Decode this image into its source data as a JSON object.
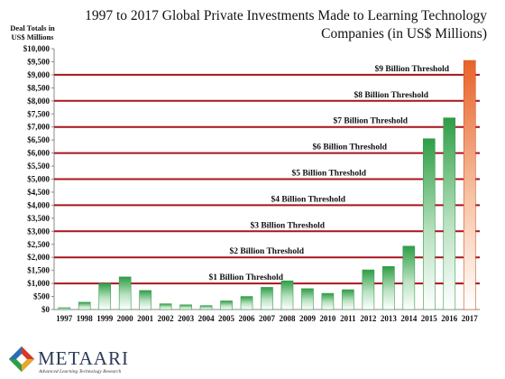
{
  "chart_data": {
    "type": "bar",
    "title_lines": [
      "1997 to 2017 Global Private Investments Made to Learning Technology",
      "Companies (in US$ Millions)"
    ],
    "ylabel_lines": [
      "Deal Totals in",
      "US$ Millions"
    ],
    "xlabel": "",
    "ylim": [
      0,
      10000
    ],
    "yticks": [
      "$0",
      "$500",
      "$1,000",
      "$1,500",
      "$2,000",
      "$2,500",
      "$3,000",
      "$3,500",
      "$4,000",
      "$4,500",
      "$5,000",
      "$5,500",
      "$6,000",
      "$6,500",
      "$7,000",
      "$7,500",
      "$8,000",
      "$8,500",
      "$9,000",
      "$9,500",
      "$10,000"
    ],
    "categories": [
      "1997",
      "1998",
      "1999",
      "2000",
      "2001",
      "2002",
      "2003",
      "2004",
      "2005",
      "2006",
      "2007",
      "2008",
      "2009",
      "2010",
      "2011",
      "2012",
      "2013",
      "2014",
      "2015",
      "2016",
      "2017"
    ],
    "values": [
      70,
      280,
      1000,
      1250,
      730,
      220,
      180,
      150,
      330,
      500,
      850,
      1100,
      800,
      620,
      760,
      1520,
      1650,
      2430,
      6550,
      7350,
      9550
    ],
    "thresholds": [
      {
        "value": 1000,
        "label": "$1 Billion Threshold"
      },
      {
        "value": 2000,
        "label": "$2 Billion Threshold"
      },
      {
        "value": 3000,
        "label": "$3 Billion Threshold"
      },
      {
        "value": 4000,
        "label": "$4 Billion Threshold"
      },
      {
        "value": 5000,
        "label": "$5 Billion Threshold"
      },
      {
        "value": 6000,
        "label": "$6 Billion Threshold"
      },
      {
        "value": 7000,
        "label": "$7 Billion Threshold"
      },
      {
        "value": 8000,
        "label": "$8 Billion Threshold"
      },
      {
        "value": 9000,
        "label": "$9 Billion Threshold"
      }
    ],
    "grid": false,
    "legend": "none",
    "colors": {
      "bar_green": "#2e9e45",
      "bar_orange": "#e8622a",
      "threshold_line": "#a8141c"
    },
    "highlight_category": "2017"
  },
  "branding": {
    "name": "METAARI",
    "tagline": "Advanced Learning Technology Research",
    "logo_icon": "metaari-diamond-logo-icon"
  }
}
